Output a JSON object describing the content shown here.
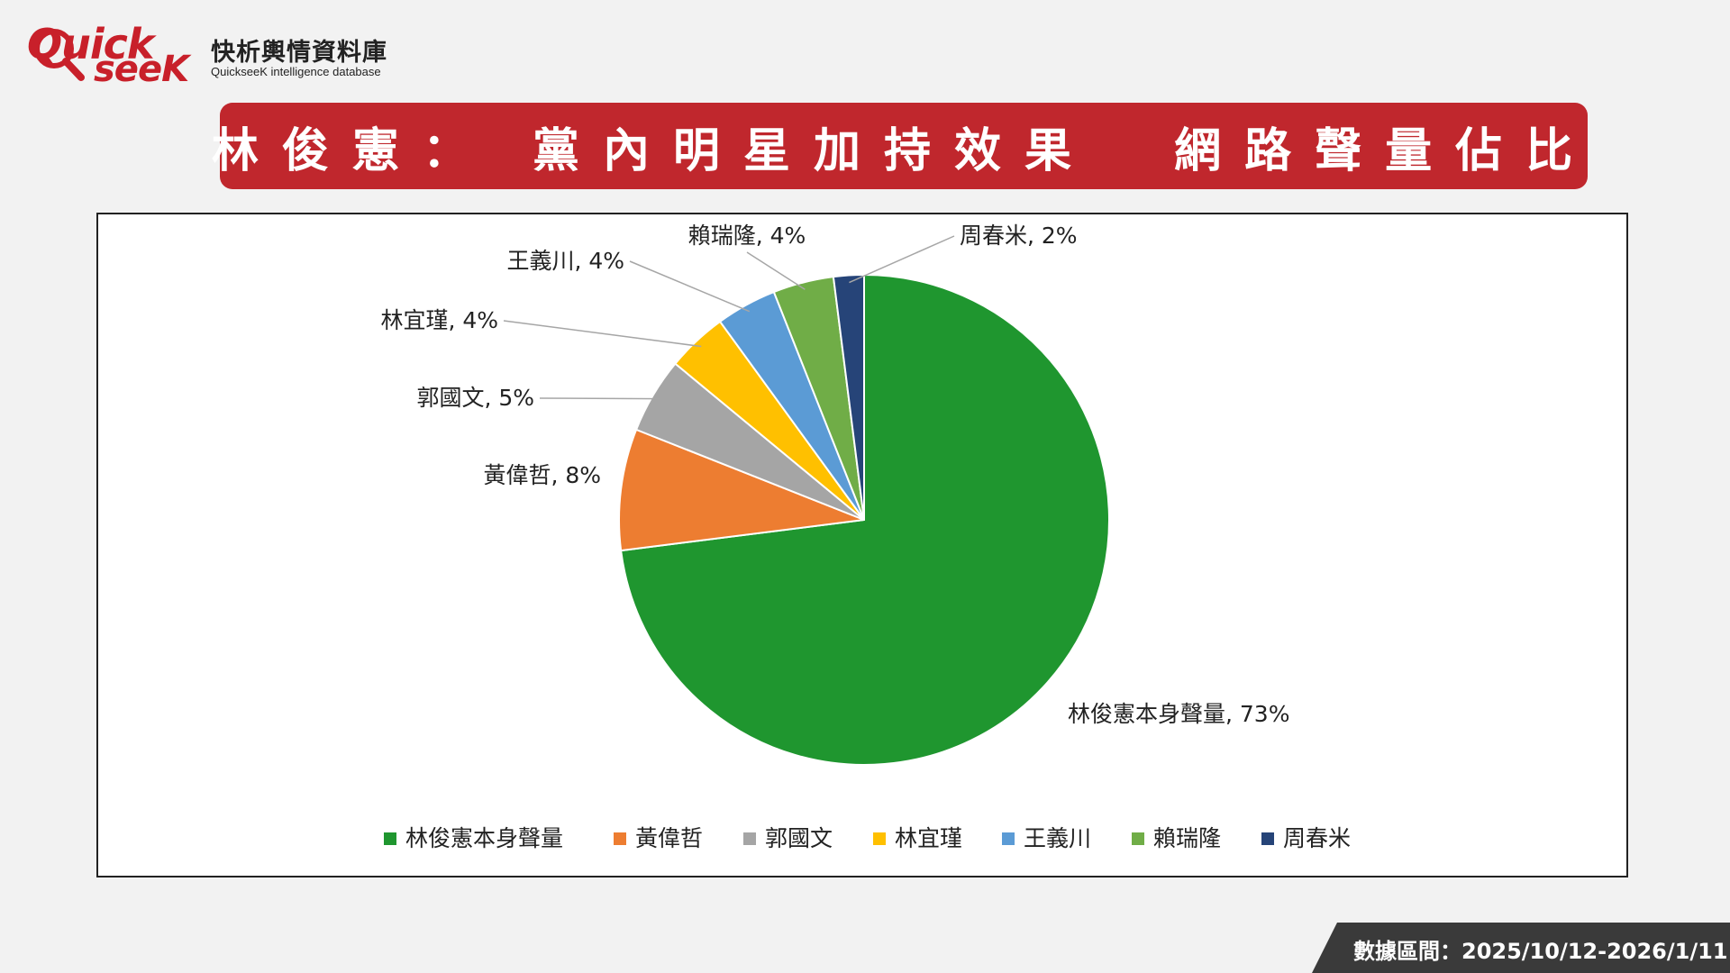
{
  "brand": {
    "logo_word_1": "Quick",
    "logo_word_2": "seeK",
    "name": "快析輿情資料庫",
    "subtitle": "QuickseeK intelligence database"
  },
  "title": "林俊憲： 黨內明星加持效果  網路聲量佔比",
  "colors": {
    "banner": "#c0272d",
    "brand_red": "#c8202a",
    "footer": "#3a3a3a"
  },
  "footer": {
    "date_range": "數據區間：2025/10/12-2026/1/11"
  },
  "chart_data": {
    "type": "pie",
    "title": "",
    "legend_position": "bottom",
    "start_angle_deg": 0,
    "direction": "clockwise",
    "series": [
      {
        "name": "林俊憲本身聲量",
        "value": 73,
        "label": "林俊憲本身聲量, 73%",
        "color": "#1f962f"
      },
      {
        "name": "黃偉哲",
        "value": 8,
        "label": "黃偉哲, 8%",
        "color": "#ed7d31"
      },
      {
        "name": "郭國文",
        "value": 5,
        "label": "郭國文, 5%",
        "color": "#a5a5a5"
      },
      {
        "name": "林宜瑾",
        "value": 4,
        "label": "林宜瑾, 4%",
        "color": "#ffc000"
      },
      {
        "name": "王義川",
        "value": 4,
        "label": "王義川, 4%",
        "color": "#5b9bd5"
      },
      {
        "name": "賴瑞隆",
        "value": 4,
        "label": "賴瑞隆, 4%",
        "color": "#70ad47"
      },
      {
        "name": "周春米",
        "value": 2,
        "label": "周春米, 2%",
        "color": "#264478"
      }
    ]
  }
}
